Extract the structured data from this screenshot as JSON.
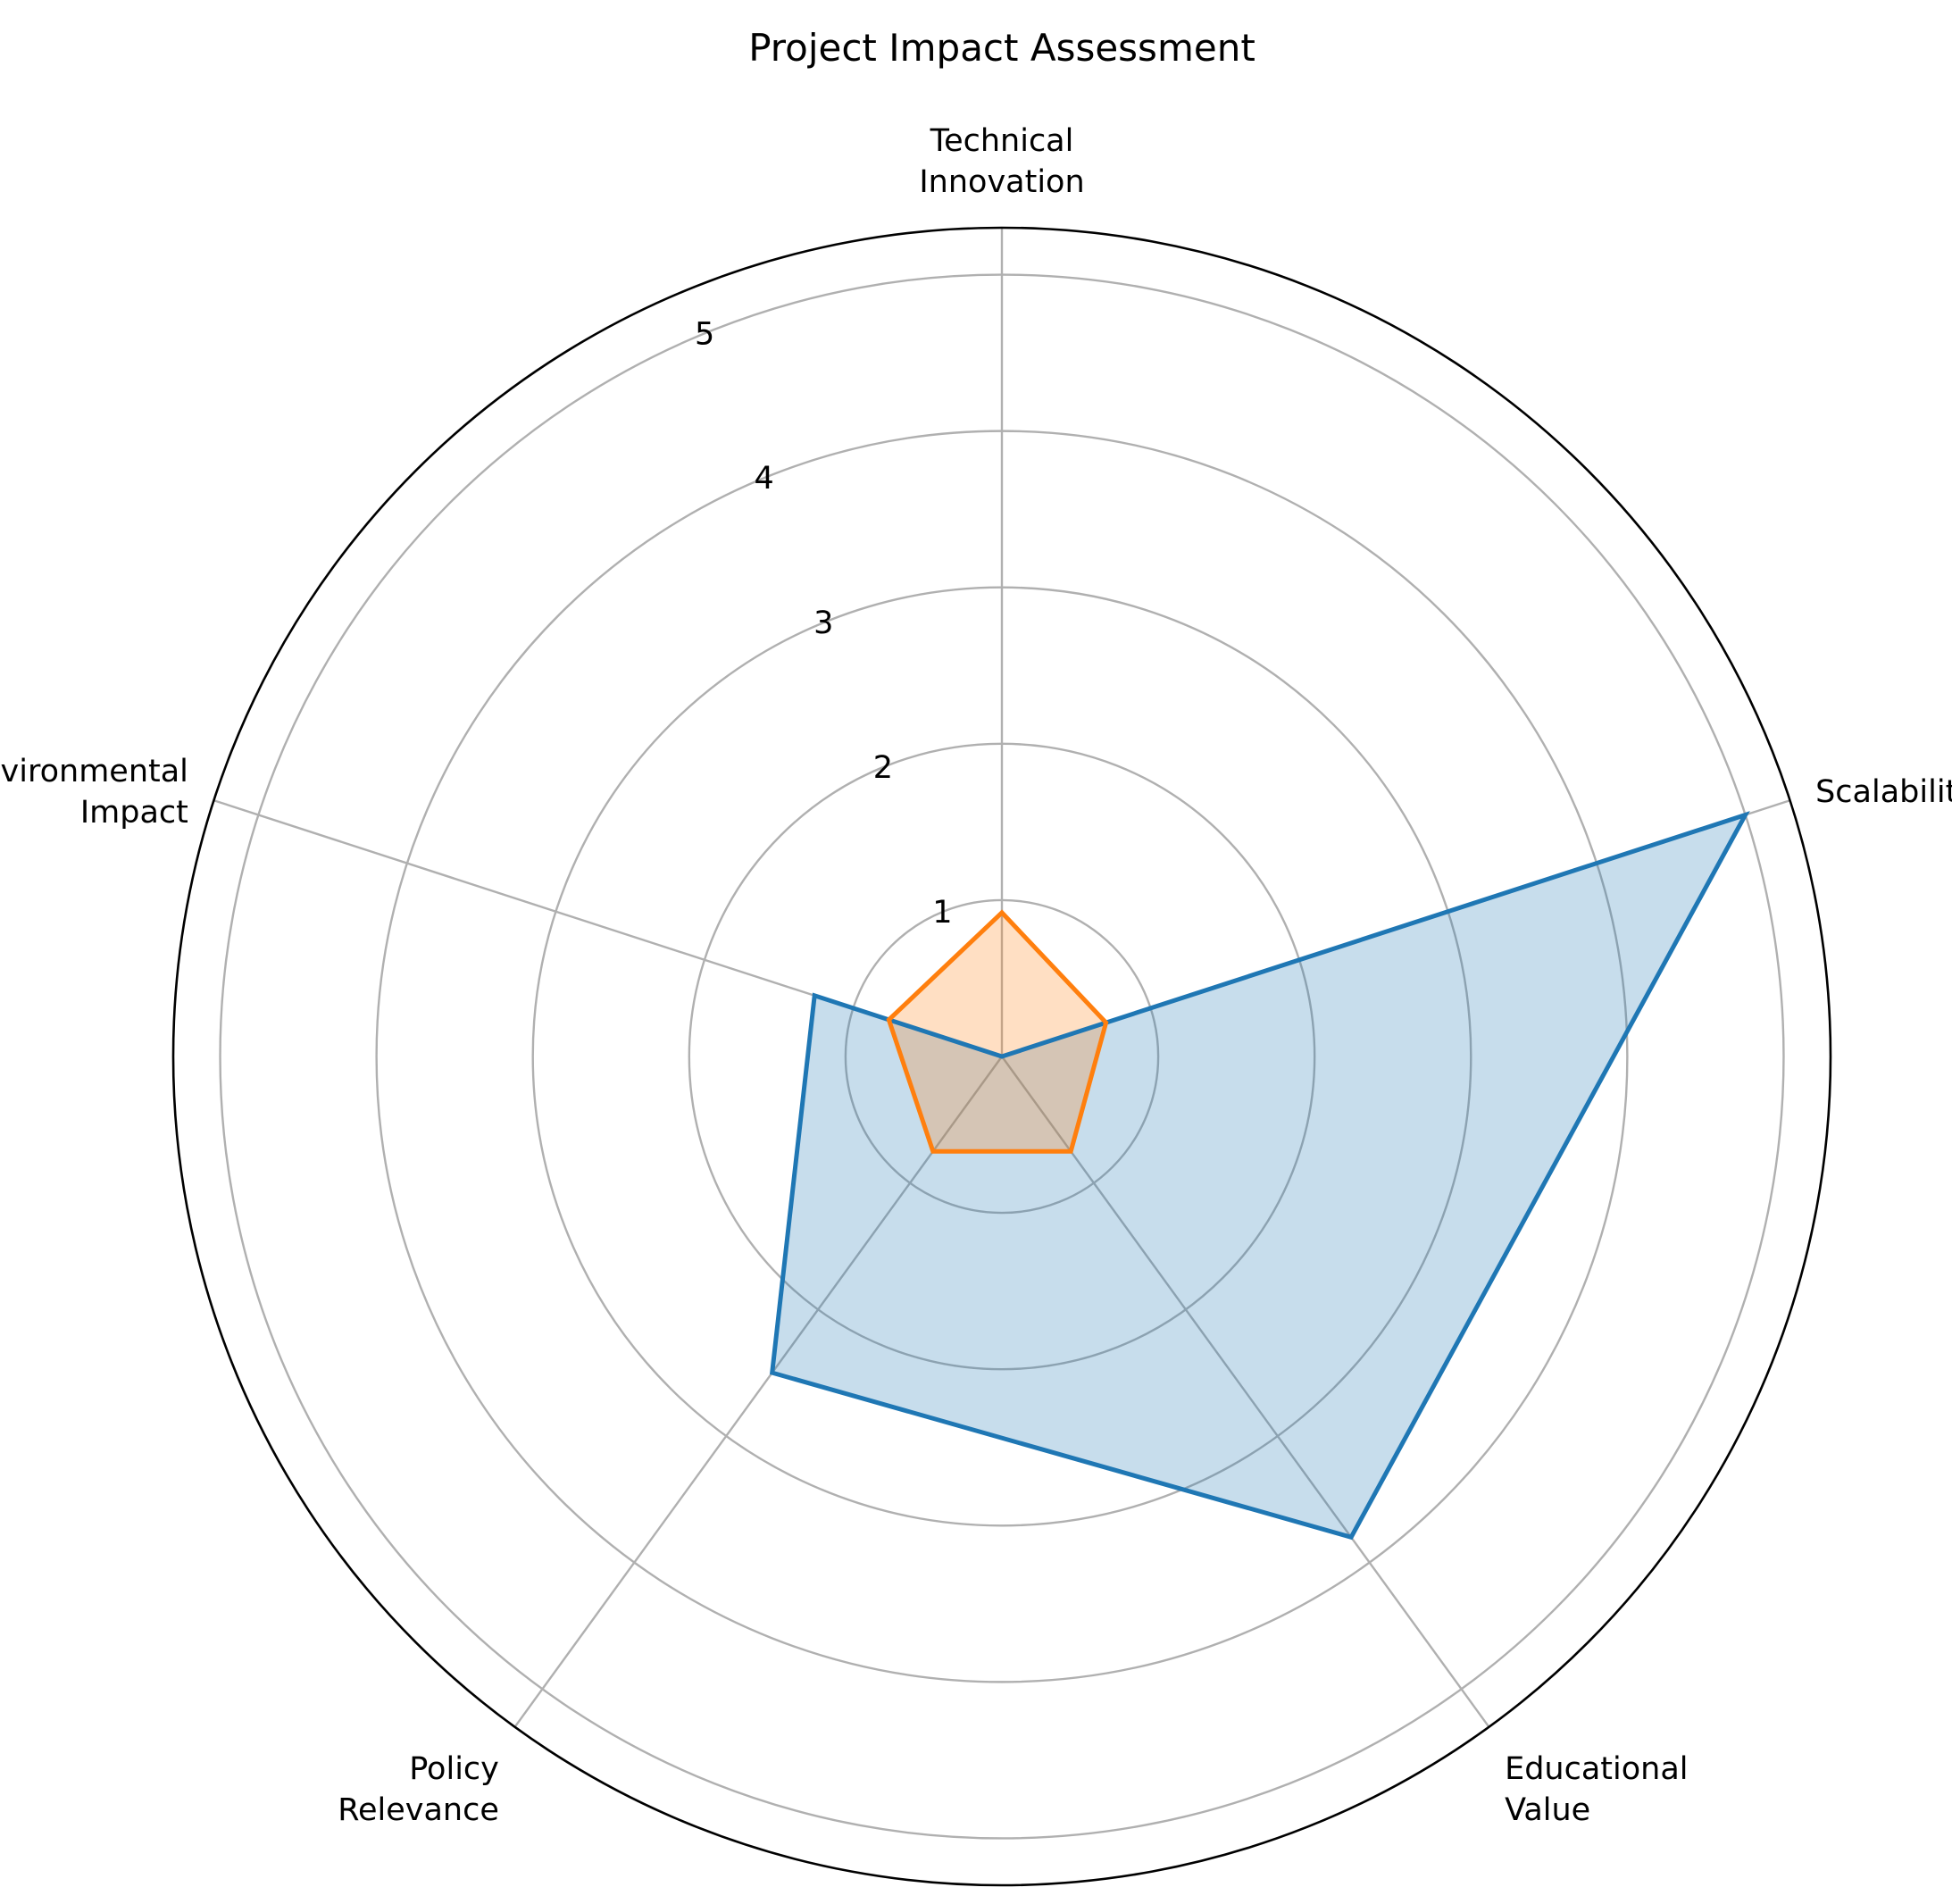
{
  "chart_data": {
    "type": "radar",
    "title": "Project Impact Assessment",
    "categories": [
      "Technical\nInnovation",
      "Scalability",
      "Educational\nValue",
      "Policy\nRelevance",
      "Environmental\nImpact"
    ],
    "rlim": [
      0,
      5.3
    ],
    "r_ticks": [
      1,
      2,
      3,
      4,
      5
    ],
    "r_tick_labels": [
      "1",
      "2",
      "3",
      "4",
      "5"
    ],
    "grid": true,
    "series": [
      {
        "values": [
          0,
          5.0,
          3.8,
          2.5,
          1.26
        ],
        "color": "#1f77b4",
        "fill_opacity": 0.25
      },
      {
        "values": [
          0.92,
          0.7,
          0.75,
          0.75,
          0.76
        ],
        "color": "#ff7f0e",
        "fill_opacity": 0.25
      }
    ]
  }
}
